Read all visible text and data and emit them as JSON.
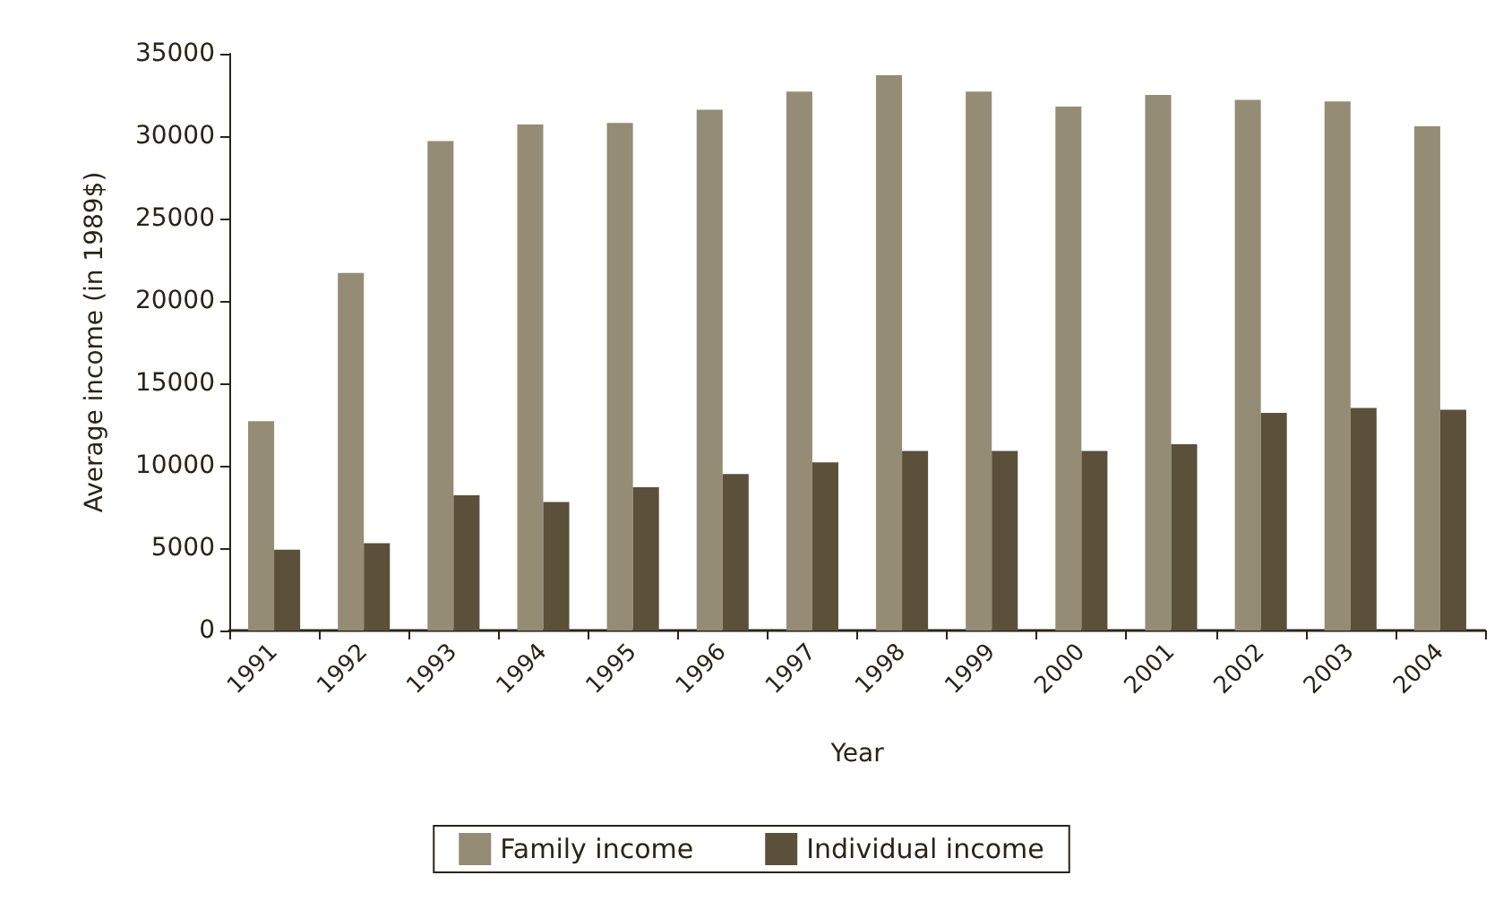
{
  "chart_data": {
    "type": "bar",
    "xlabel": "Year",
    "ylabel": "Average income (in 1989$)",
    "categories": [
      "1991",
      "1992",
      "1993",
      "1994",
      "1995",
      "1996",
      "1997",
      "1998",
      "1999",
      "2000",
      "2001",
      "2002",
      "2003",
      "2004"
    ],
    "series": [
      {
        "name": "Family income",
        "color": "#958c76",
        "values": [
          12700,
          21700,
          29700,
          30700,
          30800,
          31600,
          32700,
          33700,
          32700,
          31800,
          32500,
          32200,
          32100,
          30600
        ]
      },
      {
        "name": "Individual income",
        "color": "#5b503a",
        "values": [
          4900,
          5300,
          8200,
          7800,
          8700,
          9500,
          10200,
          10900,
          10900,
          10900,
          11300,
          13200,
          13500,
          13400
        ]
      }
    ],
    "ylim": [
      0,
      35000
    ],
    "yticks": [
      0,
      5000,
      10000,
      15000,
      20000,
      25000,
      30000,
      35000
    ],
    "grid": false,
    "legend": "bottom"
  }
}
